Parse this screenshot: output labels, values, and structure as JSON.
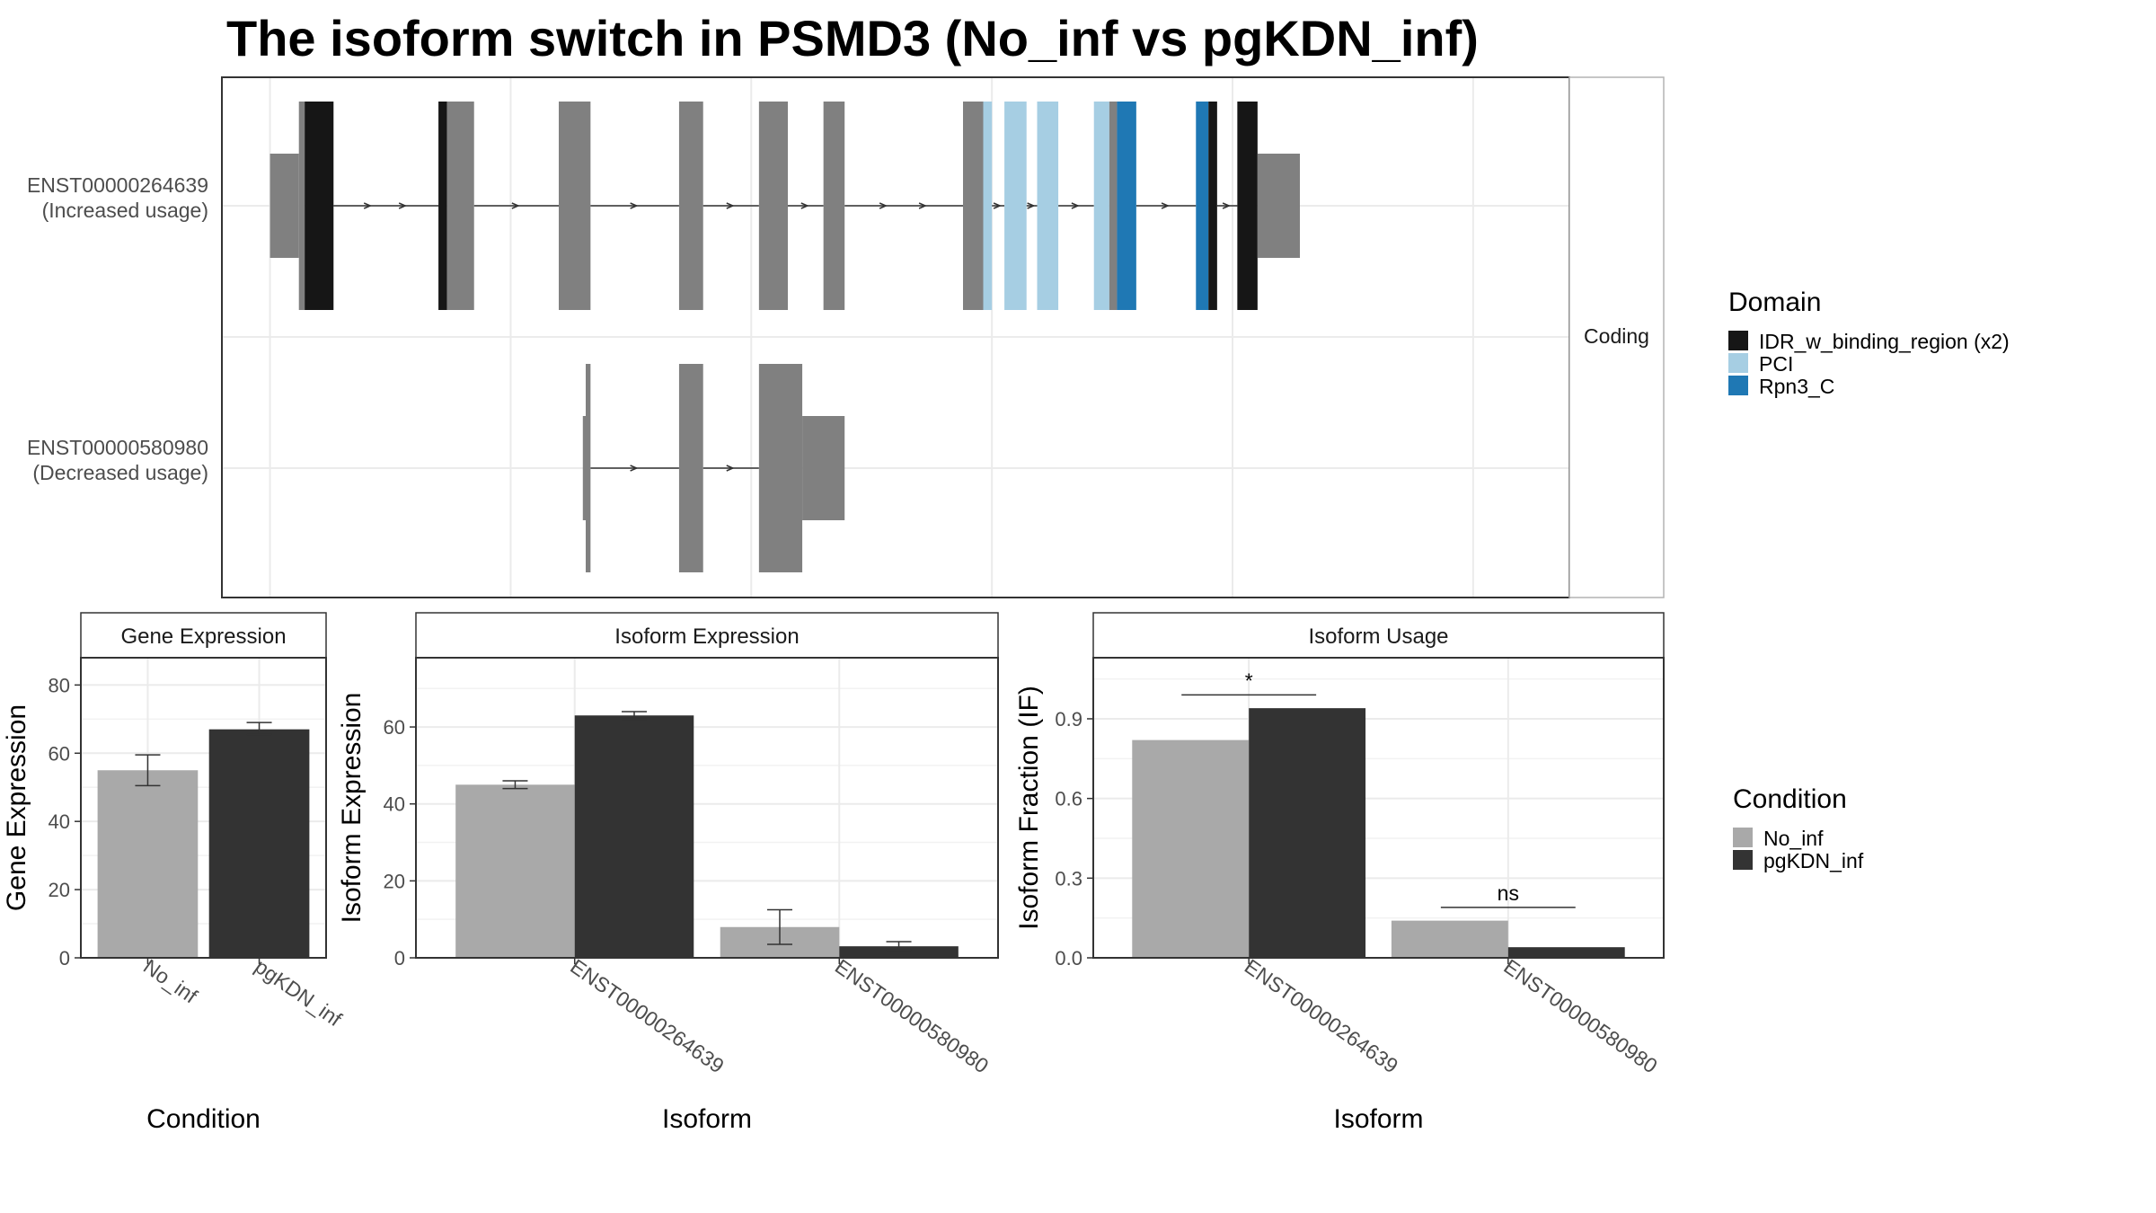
{
  "title": "The isoform switch in PSMD3 (No_inf vs pgKDN_inf)",
  "colors": {
    "no_inf": "#a9a9a9",
    "pgkdn_inf": "#333333",
    "exon": "#808080",
    "IDR_w_binding_region (x2)": "#161616",
    "PCI": "#a6cee3",
    "Rpn3_C": "#1f78b4"
  },
  "structure": {
    "facet_label": "Coding",
    "isoforms": [
      {
        "id": "ENST00000264639",
        "label": "ENST00000264639",
        "usage": "(Increased usage)",
        "segments": [
          {
            "start": 0.0,
            "end": 3.0,
            "type": "utr"
          },
          {
            "start": 3.0,
            "end": 3.6,
            "type": "cds"
          },
          {
            "start": 3.6,
            "end": 6.6,
            "type": "IDR_w_binding_region (x2)"
          },
          {
            "start": 17.5,
            "end": 18.4,
            "type": "IDR_w_binding_region (x2)"
          },
          {
            "start": 18.4,
            "end": 21.2,
            "type": "cds"
          },
          {
            "start": 30.0,
            "end": 33.3,
            "type": "cds"
          },
          {
            "start": 42.5,
            "end": 45.0,
            "type": "cds"
          },
          {
            "start": 50.8,
            "end": 53.8,
            "type": "cds"
          },
          {
            "start": 57.5,
            "end": 59.7,
            "type": "cds"
          },
          {
            "start": 72.0,
            "end": 74.1,
            "type": "cds"
          },
          {
            "start": 74.1,
            "end": 75.0,
            "type": "PCI"
          },
          {
            "start": 76.3,
            "end": 78.6,
            "type": "PCI"
          },
          {
            "start": 79.7,
            "end": 81.9,
            "type": "PCI"
          },
          {
            "start": 85.6,
            "end": 87.2,
            "type": "PCI"
          },
          {
            "start": 87.2,
            "end": 88.0,
            "type": "cds"
          },
          {
            "start": 88.0,
            "end": 90.0,
            "type": "Rpn3_C"
          },
          {
            "start": 96.2,
            "end": 97.5,
            "type": "Rpn3_C"
          },
          {
            "start": 97.5,
            "end": 98.4,
            "type": "IDR_w_binding_region (x2)"
          },
          {
            "start": 100.5,
            "end": 102.6,
            "type": "IDR_w_binding_region (x2)"
          },
          {
            "start": 102.6,
            "end": 107.0,
            "type": "utr"
          }
        ]
      },
      {
        "id": "ENST00000580980",
        "label": "ENST00000580980",
        "usage": "(Decreased usage)",
        "segments": [
          {
            "start": 32.5,
            "end": 32.8,
            "type": "utr"
          },
          {
            "start": 32.8,
            "end": 33.3,
            "type": "cds"
          },
          {
            "start": 42.5,
            "end": 45.0,
            "type": "cds"
          },
          {
            "start": 50.8,
            "end": 55.3,
            "type": "cds"
          },
          {
            "start": 55.3,
            "end": 59.7,
            "type": "utr"
          }
        ]
      }
    ]
  },
  "legends": {
    "domain": {
      "title": "Domain",
      "items": [
        "IDR_w_binding_region (x2)",
        "PCI",
        "Rpn3_C"
      ]
    },
    "condition": {
      "title": "Condition",
      "items": [
        "No_inf",
        "pgKDN_inf"
      ]
    }
  },
  "chart_data": [
    {
      "type": "bar",
      "title": "Gene Expression",
      "xlabel": "Condition",
      "ylabel": "Gene Expression",
      "categories": [
        "No_inf",
        "pgKDN_inf"
      ],
      "values": [
        55,
        67
      ],
      "error_low": [
        50.5,
        65.5
      ],
      "error_high": [
        59.5,
        69
      ],
      "ylim": [
        0,
        88
      ],
      "yticks": [
        0,
        20,
        40,
        60,
        80
      ],
      "grid": true
    },
    {
      "type": "bar",
      "title": "Isoform Expression",
      "xlabel": "Isoform",
      "ylabel": "Isoform Expression",
      "categories": [
        "ENST00000264639",
        "ENST00000580980"
      ],
      "series": [
        {
          "name": "No_inf",
          "values": [
            45,
            8
          ],
          "error_low": [
            44,
            3.5
          ],
          "error_high": [
            46,
            12.5
          ]
        },
        {
          "name": "pgKDN_inf",
          "values": [
            63,
            3
          ],
          "error_low": [
            62,
            2
          ],
          "error_high": [
            64,
            4.2
          ]
        }
      ],
      "ylim": [
        0,
        78
      ],
      "yticks": [
        0,
        20,
        40,
        60
      ],
      "grid": true
    },
    {
      "type": "bar",
      "title": "Isoform Usage",
      "xlabel": "Isoform",
      "ylabel": "Isoform Fraction (IF)",
      "categories": [
        "ENST00000264639",
        "ENST00000580980"
      ],
      "series": [
        {
          "name": "No_inf",
          "values": [
            0.82,
            0.14
          ]
        },
        {
          "name": "pgKDN_inf",
          "values": [
            0.94,
            0.04
          ]
        }
      ],
      "annotations": [
        {
          "category": "ENST00000264639",
          "text": "*",
          "y": 0.99
        },
        {
          "category": "ENST00000580980",
          "text": "ns",
          "y": 0.19
        }
      ],
      "ylim": [
        0,
        1.13
      ],
      "yticks": [
        0.0,
        0.3,
        0.6,
        0.9
      ],
      "ytick_labels": [
        "0.0",
        "0.3",
        "0.6",
        "0.9"
      ],
      "grid": true
    }
  ]
}
